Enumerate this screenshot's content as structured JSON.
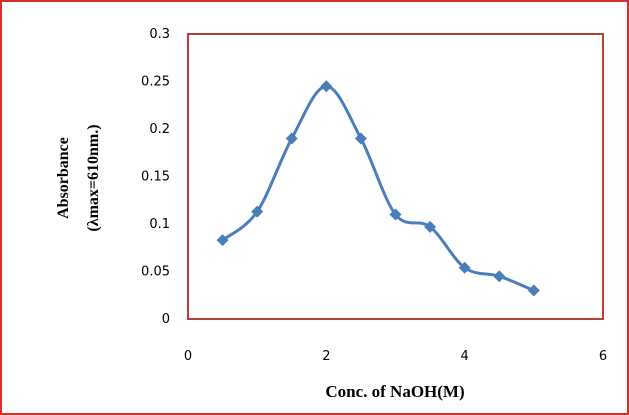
{
  "chart_data": {
    "type": "scatter",
    "title": "",
    "xlabel": "Conc. of NaOH(M)",
    "ylabel_line1": "Absorbance",
    "ylabel_line2": "(λmax=610nm.)",
    "xlim": [
      0,
      6
    ],
    "ylim": [
      0,
      0.3
    ],
    "xticks": [
      0,
      2,
      4,
      6
    ],
    "yticks": [
      0,
      0.05,
      0.1,
      0.15,
      0.2,
      0.25,
      0.3
    ],
    "xtick_labels": [
      "0",
      "2",
      "4",
      "6"
    ],
    "ytick_labels": [
      "0",
      "0.05",
      "0.1",
      "0.15",
      "0.2",
      "0.25",
      "0.3"
    ],
    "grid": false,
    "legend": "none",
    "smooth_line": true,
    "series": [
      {
        "color": "#4a7ebb",
        "marker": "diamond",
        "x": [
          0.5,
          1.0,
          1.5,
          2.0,
          2.5,
          3.0,
          3.5,
          4.0,
          4.5,
          5.0
        ],
        "y": [
          0.083,
          0.113,
          0.19,
          0.245,
          0.19,
          0.11,
          0.097,
          0.054,
          0.045,
          0.03
        ]
      }
    ],
    "outer_border_color": "#d0312d",
    "plot_border_color": "#b5403a"
  }
}
